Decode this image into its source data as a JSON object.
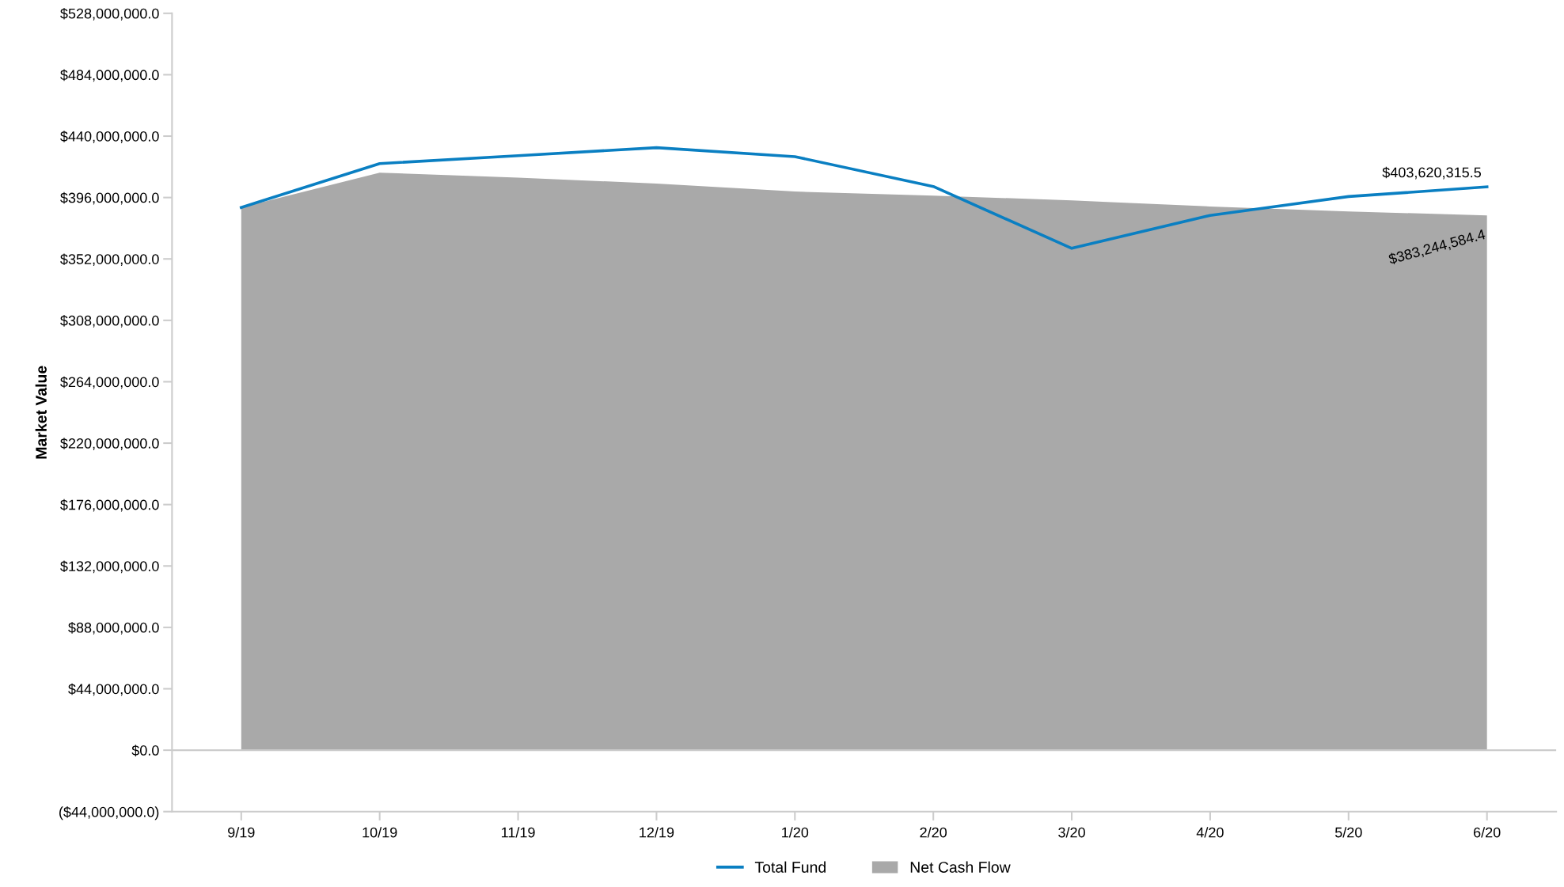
{
  "chart_data": {
    "type": "line",
    "ylabel": "Market Value",
    "categories": [
      "9/19",
      "10/19",
      "11/19",
      "12/19",
      "1/20",
      "2/20",
      "3/20",
      "4/20",
      "5/20",
      "6/20"
    ],
    "series": [
      {
        "name": "Total Fund",
        "color": "#0a7fc2",
        "values": [
          388900000,
          420300000,
          426000000,
          431700000,
          425300000,
          403900000,
          359600000,
          383200000,
          396700000,
          403620315.5
        ],
        "value_labels": [
          null,
          null,
          null,
          null,
          null,
          null,
          null,
          null,
          null,
          "$403,620,315.5"
        ]
      },
      {
        "name": "Net Cash Flow",
        "type": "area",
        "color": "#a9a9a9",
        "values": [
          388900000,
          413800000,
          410300000,
          406000000,
          400300000,
          397400000,
          393900000,
          389600000,
          386000000,
          383244584.4
        ],
        "value_labels": [
          null,
          null,
          null,
          null,
          null,
          null,
          null,
          null,
          null,
          "$383,244,584.4"
        ]
      }
    ],
    "ylim": [
      -44000000,
      528000000
    ],
    "yticks": [
      {
        "value": -44000000,
        "label": "($44,000,000.0)"
      },
      {
        "value": 0,
        "label": "$0.0"
      },
      {
        "value": 44000000,
        "label": "$44,000,000.0"
      },
      {
        "value": 88000000,
        "label": "$88,000,000.0"
      },
      {
        "value": 132000000,
        "label": "$132,000,000.0"
      },
      {
        "value": 176000000,
        "label": "$176,000,000.0"
      },
      {
        "value": 220000000,
        "label": "$220,000,000.0"
      },
      {
        "value": 264000000,
        "label": "$264,000,000.0"
      },
      {
        "value": 308000000,
        "label": "$308,000,000.0"
      },
      {
        "value": 352000000,
        "label": "$352,000,000.0"
      },
      {
        "value": 396000000,
        "label": "$396,000,000.0"
      },
      {
        "value": 440000000,
        "label": "$440,000,000.0"
      },
      {
        "value": 484000000,
        "label": "$484,000,000.0"
      },
      {
        "value": 528000000,
        "label": "$528,000,000.0"
      }
    ],
    "ref_lines": [
      {
        "axis": "y",
        "value": 0,
        "color": "#cccccc"
      }
    ],
    "grid": false,
    "legend": "bottom",
    "marker": "none",
    "line_style": "solid"
  }
}
